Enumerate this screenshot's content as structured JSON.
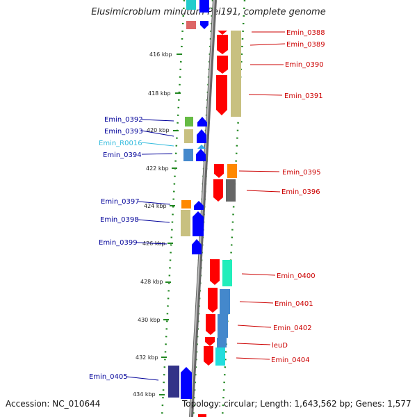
{
  "title": "Elusimicrobium minutum Pei191, complete genome",
  "footer": {
    "accession": "Accession: NC_010644",
    "topology": "Topology: circular; Length: 1,643,562 bp; Genes: 1,577"
  },
  "colors": {
    "forward_gene": "#ff0000",
    "reverse_gene": "#0000ff",
    "backbone": "#888888",
    "track_dots": "#228822",
    "label_red": "#cc0000",
    "label_blue": "#000099",
    "label_cyan": "#33bbdd"
  },
  "ticks": [
    "416 kbp",
    "418 kbp",
    "420 kbp",
    "422 kbp",
    "424 kbp",
    "426 kbp",
    "428 kbp",
    "430 kbp",
    "432 kbp",
    "434 kbp"
  ],
  "genes_right": [
    {
      "label": "Emin_0388"
    },
    {
      "label": "Emin_0389"
    },
    {
      "label": "Emin_0390"
    },
    {
      "label": "Emin_0391"
    },
    {
      "label": "Emin_0395"
    },
    {
      "label": "Emin_0396"
    },
    {
      "label": "Emin_0400"
    },
    {
      "label": "Emin_0401"
    },
    {
      "label": "Emin_0402"
    },
    {
      "label": "leuD"
    },
    {
      "label": "Emin_0404"
    }
  ],
  "genes_left": [
    {
      "label": "Emin_0392"
    },
    {
      "label": "Emin_0393"
    },
    {
      "label": "Emin_R0016"
    },
    {
      "label": "Emin_0394"
    },
    {
      "label": "Emin_0397"
    },
    {
      "label": "Emin_0398"
    },
    {
      "label": "Emin_0399"
    },
    {
      "label": "Emin_0405"
    }
  ]
}
